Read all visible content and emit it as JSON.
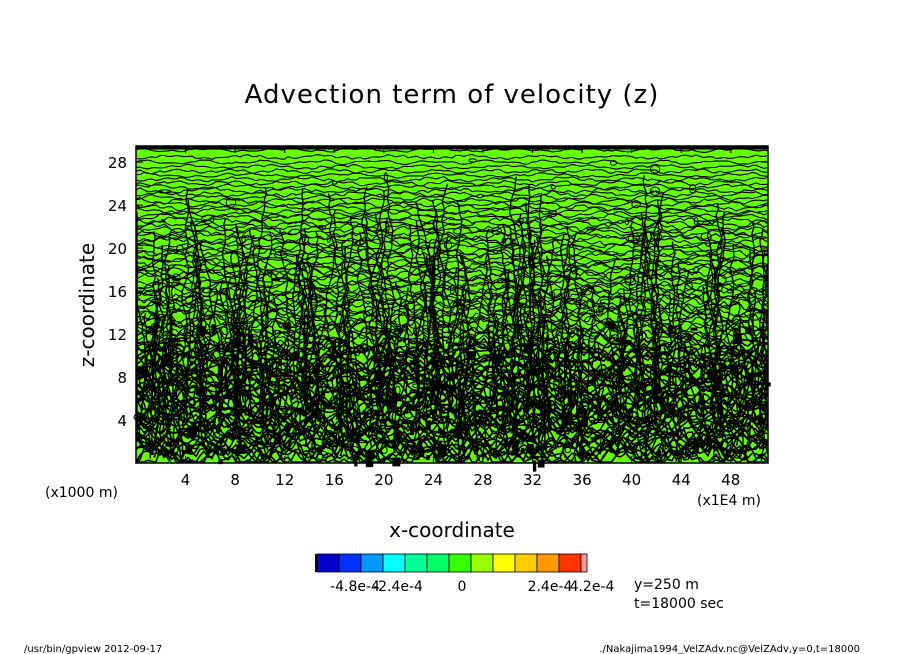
{
  "chart_data": {
    "type": "heatmap",
    "title": "Advection term of velocity (z)",
    "xlabel": "x-coordinate",
    "ylabel": "z-coordinate",
    "x_unit_label": "(x1E4 m)",
    "y_unit_label": "(x1000 m)",
    "xlim": [
      0,
      51
    ],
    "ylim": [
      0,
      29.5
    ],
    "x_ticks": [
      4,
      8,
      12,
      16,
      20,
      24,
      28,
      32,
      36,
      40,
      44,
      48
    ],
    "x_tick_labels": [
      "4",
      "8",
      "12",
      "16",
      "20",
      "24",
      "28",
      "32",
      "36",
      "40",
      "44",
      "48"
    ],
    "y_ticks": [
      4,
      8,
      12,
      16,
      20,
      24,
      28
    ],
    "y_tick_labels": [
      "4",
      "8",
      "12",
      "16",
      "20",
      "24",
      "28"
    ],
    "fill_color": "#66ff00",
    "contour_color": "#000000",
    "colorbar": {
      "colors": [
        "#0000cc",
        "#0033ff",
        "#0099ff",
        "#00ffff",
        "#00ff99",
        "#00ff66",
        "#33ff00",
        "#99ff00",
        "#ffff00",
        "#ffcc00",
        "#ff9900",
        "#ff3300",
        "#ff9999"
      ],
      "labels": [
        "-4.8e-4",
        "-2.4e-4",
        "0",
        "2.4e-4",
        "4.2e-4"
      ]
    },
    "annotations": [
      "y=250 m",
      "t=18000 sec"
    ]
  },
  "footer": {
    "left": "/usr/bin/gpview   2012-09-17",
    "right": "./Nakajima1994_VelZAdv.nc@VelZAdv,y=0,t=18000"
  }
}
